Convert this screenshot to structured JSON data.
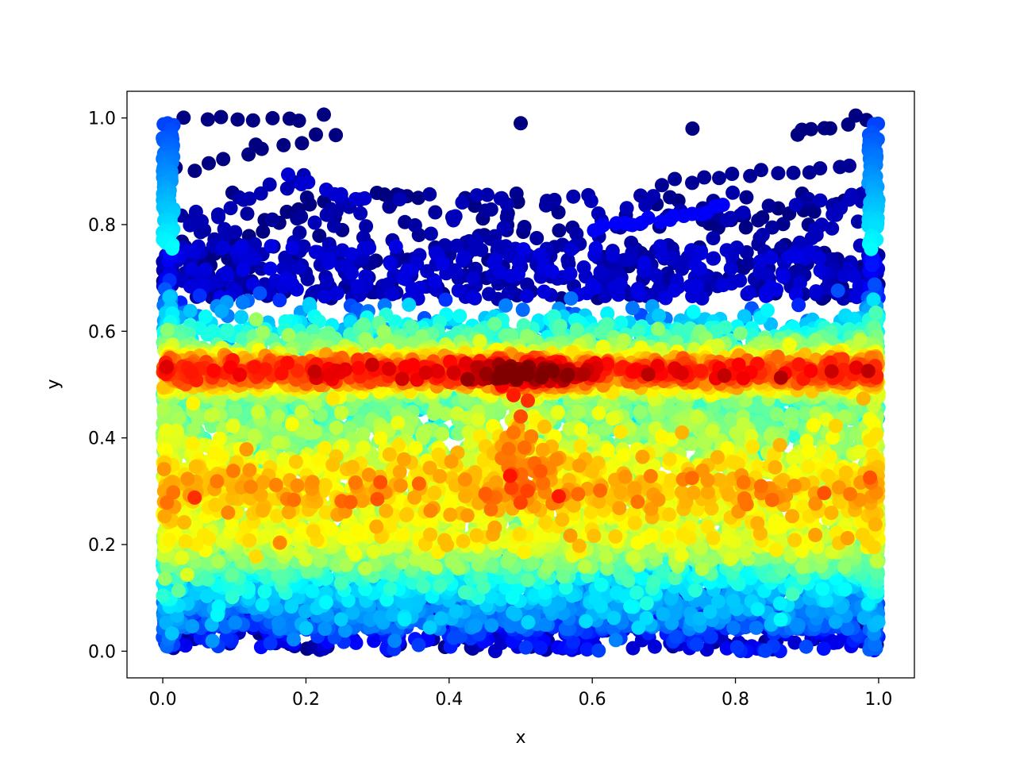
{
  "chart_data": {
    "type": "scatter",
    "title": "",
    "xlabel": "x",
    "ylabel": "y",
    "xlim": [
      -0.05,
      1.05
    ],
    "ylim": [
      -0.05,
      1.05
    ],
    "xticks": [
      0.0,
      0.2,
      0.4,
      0.6,
      0.8,
      1.0
    ],
    "xtick_labels": [
      "0.0",
      "0.2",
      "0.4",
      "0.6",
      "0.8",
      "1.0"
    ],
    "yticks": [
      0.0,
      0.2,
      0.4,
      0.6,
      0.8,
      1.0
    ],
    "ytick_labels": [
      "0.0",
      "0.2",
      "0.4",
      "0.6",
      "0.8",
      "1.0"
    ],
    "grid": false,
    "legend": "none",
    "colormap": "jet",
    "color_value_range": [
      0,
      1
    ],
    "points": [
      {
        "x": 0.5,
        "y": 0.52,
        "c": 1.0
      },
      {
        "x": 0.48,
        "y": 0.53,
        "c": 0.98
      },
      {
        "x": 0.52,
        "y": 0.51,
        "c": 0.97
      },
      {
        "x": 0.46,
        "y": 0.52,
        "c": 0.93
      },
      {
        "x": 0.54,
        "y": 0.53,
        "c": 0.92
      },
      {
        "x": 0.44,
        "y": 0.52,
        "c": 0.88
      },
      {
        "x": 0.56,
        "y": 0.52,
        "c": 0.86
      },
      {
        "x": 0.42,
        "y": 0.53,
        "c": 0.84
      },
      {
        "x": 0.58,
        "y": 0.53,
        "c": 0.82
      },
      {
        "x": 0.4,
        "y": 0.52,
        "c": 0.8
      },
      {
        "x": 0.49,
        "y": 0.48,
        "c": 0.85
      },
      {
        "x": 0.51,
        "y": 0.47,
        "c": 0.83
      },
      {
        "x": 0.5,
        "y": 0.44,
        "c": 0.8
      },
      {
        "x": 0.49,
        "y": 0.41,
        "c": 0.76
      },
      {
        "x": 0.51,
        "y": 0.38,
        "c": 0.72
      },
      {
        "x": 0.5,
        "y": 0.35,
        "c": 0.7
      },
      {
        "x": 0.49,
        "y": 0.31,
        "c": 0.68
      },
      {
        "x": 0.51,
        "y": 0.28,
        "c": 0.66
      },
      {
        "x": 0.55,
        "y": 0.36,
        "c": 0.74
      },
      {
        "x": 0.59,
        "y": 0.36,
        "c": 0.7
      },
      {
        "x": 0.01,
        "y": 0.52,
        "c": 0.82
      },
      {
        "x": 0.01,
        "y": 0.55,
        "c": 0.78
      },
      {
        "x": 0.99,
        "y": 0.52,
        "c": 0.8
      },
      {
        "x": 0.99,
        "y": 0.55,
        "c": 0.76
      },
      {
        "x": 0.5,
        "y": 0.99,
        "c": 0.0
      },
      {
        "x": 0.74,
        "y": 0.98,
        "c": 0.0
      },
      {
        "x": 0.13,
        "y": 0.95,
        "c": 0.0
      }
    ]
  }
}
